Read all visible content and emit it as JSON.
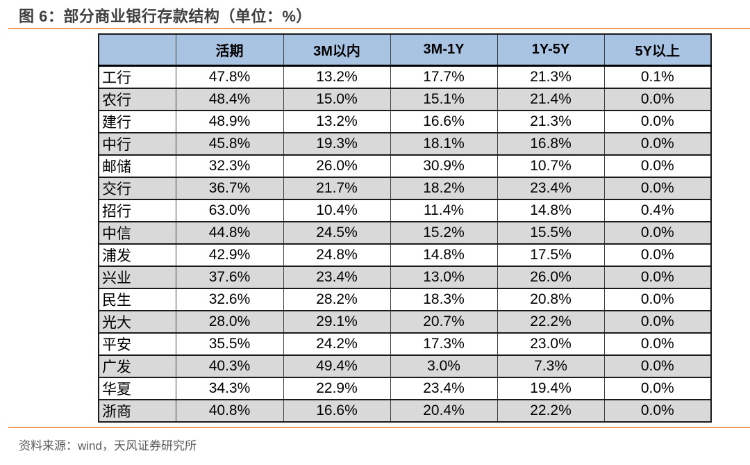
{
  "page": {
    "title": "图 6：部分商业银行存款结构（单位：%）",
    "source_note": "资料来源：wind，天风证券研究所"
  },
  "colors": {
    "accent_line": "#ED9D5B",
    "header_bg": "#A9C3E3",
    "stripe_bg": "#D9D9D9",
    "title_text": "#3F3F3F",
    "source_text": "#595959",
    "border_dark": "#1A1A1A"
  },
  "chart_data": {
    "type": "table",
    "title": "图 6：部分商业银行存款结构（单位：%）",
    "unit": "%",
    "columns": [
      "",
      "活期",
      "3M以内",
      "3M-1Y",
      "1Y-5Y",
      "5Y以上"
    ],
    "rows": [
      {
        "bank": "工行",
        "values": [
          "47.8%",
          "13.2%",
          "17.7%",
          "21.3%",
          "0.1%"
        ]
      },
      {
        "bank": "农行",
        "values": [
          "48.4%",
          "15.0%",
          "15.1%",
          "21.4%",
          "0.0%"
        ]
      },
      {
        "bank": "建行",
        "values": [
          "48.9%",
          "13.2%",
          "16.6%",
          "21.3%",
          "0.0%"
        ]
      },
      {
        "bank": "中行",
        "values": [
          "45.8%",
          "19.3%",
          "18.1%",
          "16.8%",
          "0.0%"
        ]
      },
      {
        "bank": "邮储",
        "values": [
          "32.3%",
          "26.0%",
          "30.9%",
          "10.7%",
          "0.0%"
        ]
      },
      {
        "bank": "交行",
        "values": [
          "36.7%",
          "21.7%",
          "18.2%",
          "23.4%",
          "0.0%"
        ]
      },
      {
        "bank": "招行",
        "values": [
          "63.0%",
          "10.4%",
          "11.4%",
          "14.8%",
          "0.4%"
        ]
      },
      {
        "bank": "中信",
        "values": [
          "44.8%",
          "24.5%",
          "15.2%",
          "15.5%",
          "0.0%"
        ]
      },
      {
        "bank": "浦发",
        "values": [
          "42.9%",
          "24.8%",
          "14.8%",
          "17.5%",
          "0.0%"
        ]
      },
      {
        "bank": "兴业",
        "values": [
          "37.6%",
          "23.4%",
          "13.0%",
          "26.0%",
          "0.0%"
        ]
      },
      {
        "bank": "民生",
        "values": [
          "32.6%",
          "28.2%",
          "18.3%",
          "20.8%",
          "0.0%"
        ]
      },
      {
        "bank": "光大",
        "values": [
          "28.0%",
          "29.1%",
          "20.7%",
          "22.2%",
          "0.0%"
        ]
      },
      {
        "bank": "平安",
        "values": [
          "35.5%",
          "24.2%",
          "17.3%",
          "23.0%",
          "0.0%"
        ]
      },
      {
        "bank": "广发",
        "values": [
          "40.3%",
          "49.4%",
          "3.0%",
          "7.3%",
          "0.0%"
        ]
      },
      {
        "bank": "华夏",
        "values": [
          "34.3%",
          "22.9%",
          "23.4%",
          "19.4%",
          "0.0%"
        ]
      },
      {
        "bank": "浙商",
        "values": [
          "40.8%",
          "16.6%",
          "20.4%",
          "22.2%",
          "0.0%"
        ]
      }
    ]
  }
}
